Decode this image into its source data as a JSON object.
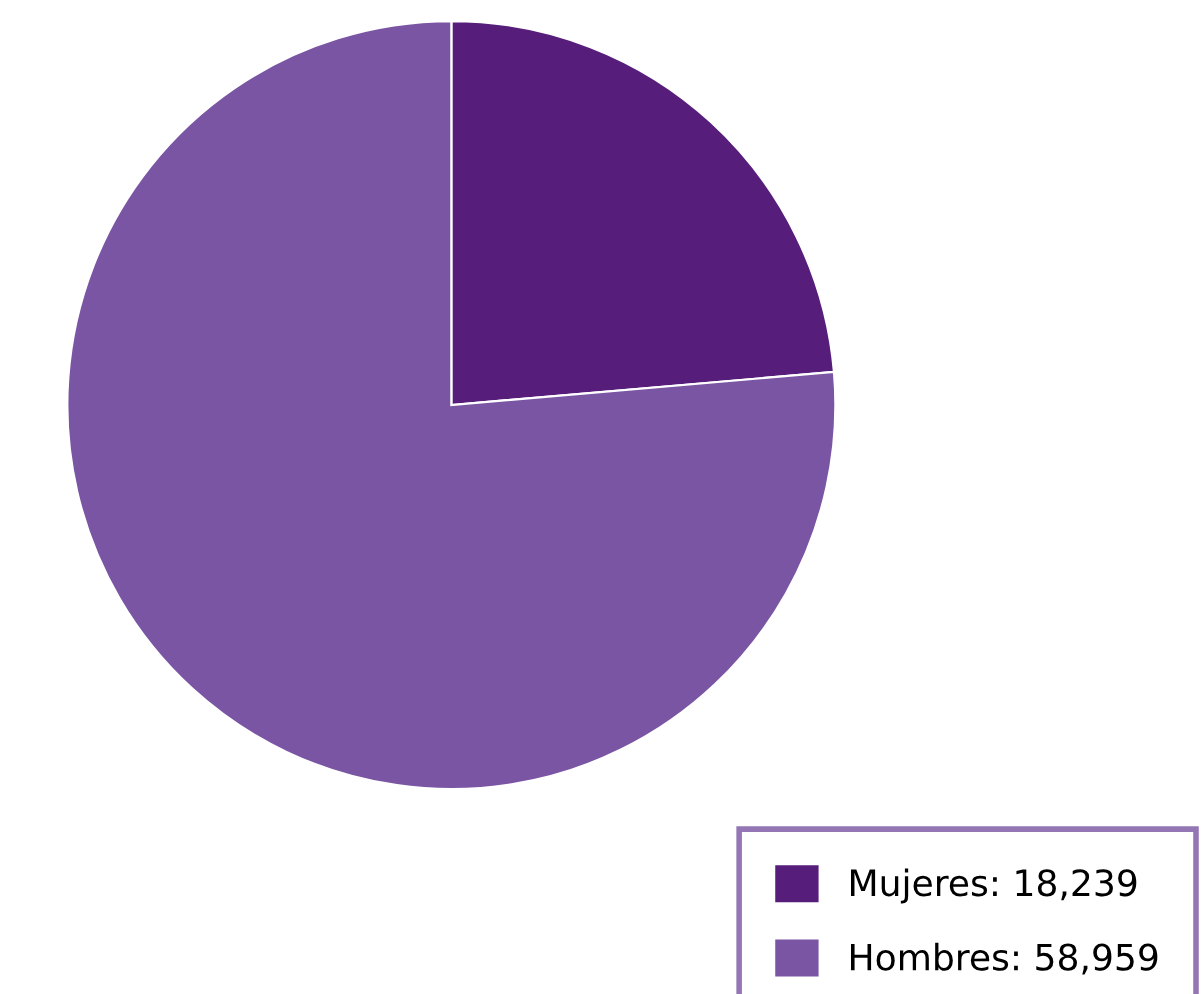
{
  "chart_data": {
    "type": "pie",
    "categories": [
      "Mujeres",
      "Hombres"
    ],
    "values": [
      18239,
      58959
    ],
    "value_labels": [
      "18,239",
      "58,959"
    ],
    "colors": [
      "#561d7a",
      "#7a55a3"
    ],
    "legend": "bottom right"
  }
}
